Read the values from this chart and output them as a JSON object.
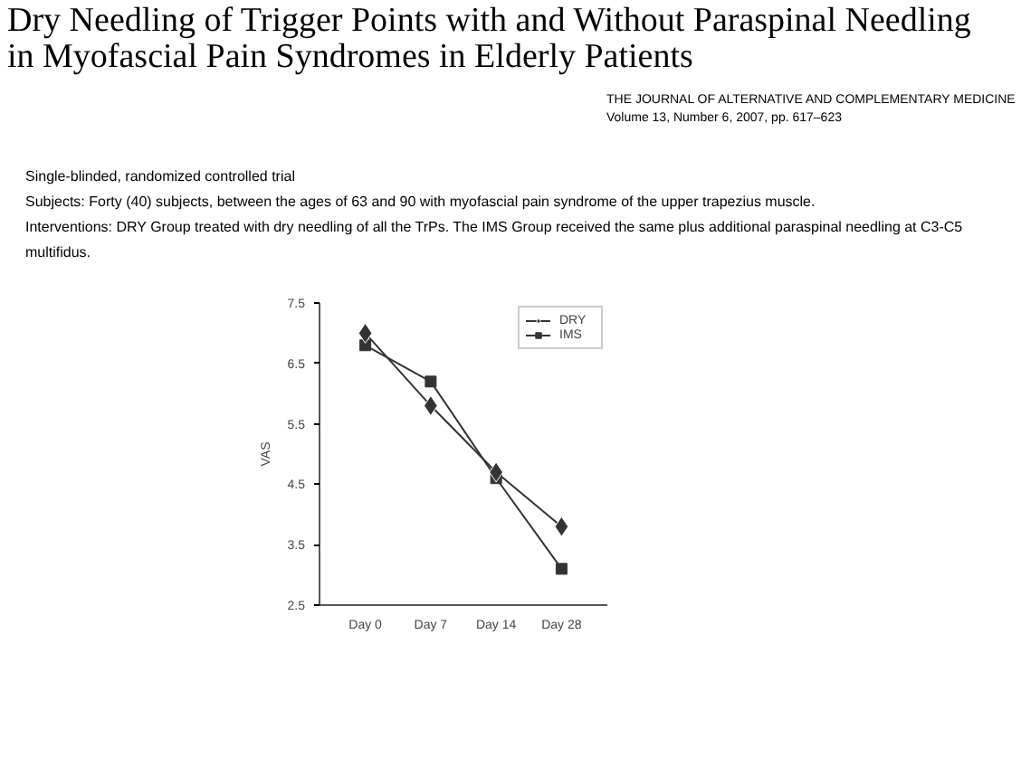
{
  "chart_data": {
    "type": "line",
    "title": "Dry Needling of Trigger Points with and Without Paraspinal Needling in Myofascial Pain Syndromes in Elderly Patients",
    "subtitle": "THE JOURNAL OF ALTERNATIVE AND COMPLEMENTARY MEDICINE\nVolume 13, Number 6, 2007, pp. 617–623",
    "annotations": [
      "Single-blinded, randomized controlled trial",
      "Subjects: Forty (40) subjects, between the ages of 63 and 90 with myofascial pain syndrome of the upper trapezius muscle.",
      "Interventions: DRY Group treated with dry needling of all the TrPs.  The IMS Group received the same plus additional paraspinal needling at C3-C5 multifidus."
    ],
    "ylabel": "VAS",
    "categories": [
      "Day 0",
      "Day 7",
      "Day 14",
      "Day 28"
    ],
    "ylim": [
      2.5,
      7.5
    ],
    "yticks": [
      2.5,
      3.5,
      4.5,
      5.5,
      6.5,
      7.5
    ],
    "grid": false,
    "legend": "top right",
    "line_style": "solid",
    "series": [
      {
        "name": "DRY",
        "color": "#333333",
        "marker": "diamond",
        "values": [
          7.0,
          5.8,
          4.7,
          3.8
        ]
      },
      {
        "name": "IMS",
        "color": "#333333",
        "marker": "square",
        "values": [
          6.8,
          6.2,
          4.6,
          3.1
        ]
      }
    ]
  }
}
